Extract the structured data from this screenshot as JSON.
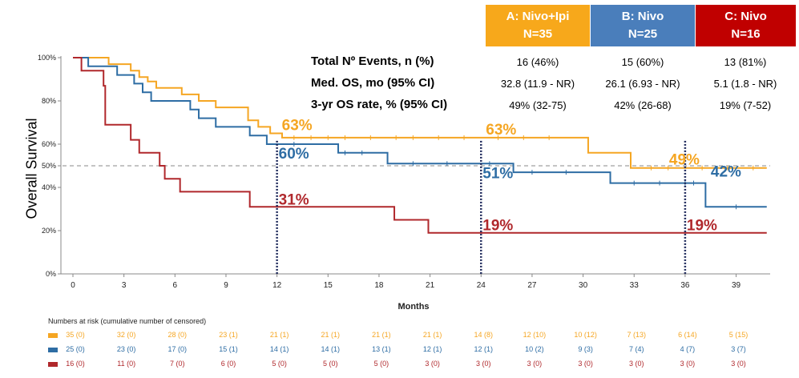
{
  "colors": {
    "A": "#F5A623",
    "B": "#2E6DA4",
    "C": "#B0282C",
    "header_A": "#F7A81B",
    "header_B": "#4A7EBB",
    "header_C": "#C00000",
    "ref": "#1F2A5C"
  },
  "arms": [
    {
      "key": "A",
      "name": "A: Nivo+Ipi",
      "n": "N=35"
    },
    {
      "key": "B",
      "name": "B: Nivo",
      "n": "N=25"
    },
    {
      "key": "C",
      "name": "C: Nivo",
      "n": "N=16"
    }
  ],
  "stats": [
    {
      "label": "Total Nº Events, n (%)",
      "values": [
        "16 (46%)",
        "15 (60%)",
        "13 (81%)"
      ]
    },
    {
      "label": "Med. OS, mo (95% CI)",
      "values": [
        "32.8 (11.9 - NR)",
        "26.1 (6.93 - NR)",
        "5.1 (1.8 - NR)"
      ]
    },
    {
      "label": "3-yr OS rate, % (95% CI)",
      "values": [
        "49% (32-75)",
        "42% (26-68)",
        "19% (7-52)"
      ]
    }
  ],
  "chart_data": {
    "type": "line",
    "subtype": "kaplan-meier",
    "xlabel": "Months",
    "ylabel": "Overall Survival",
    "xlim": [
      0,
      41
    ],
    "ylim": [
      0,
      100
    ],
    "xticks": [
      0,
      3,
      6,
      9,
      12,
      15,
      18,
      21,
      24,
      27,
      30,
      33,
      36,
      39
    ],
    "yticks": [
      0,
      20,
      40,
      50,
      60,
      80,
      100
    ],
    "ytick_labels": [
      "0%",
      "20%",
      "40%",
      "50%",
      "60%",
      "80%",
      "100%"
    ],
    "reference_line_y": 50,
    "landmarks_x": [
      12,
      24,
      36
    ],
    "series": [
      {
        "key": "A",
        "steps": [
          [
            0,
            100
          ],
          [
            2.1,
            97
          ],
          [
            3.4,
            94
          ],
          [
            3.9,
            91
          ],
          [
            4.4,
            89
          ],
          [
            4.9,
            86
          ],
          [
            6.4,
            83
          ],
          [
            7.4,
            80
          ],
          [
            8.4,
            77
          ],
          [
            10.3,
            71
          ],
          [
            10.9,
            68
          ],
          [
            11.6,
            65
          ],
          [
            12.3,
            63
          ],
          [
            30.3,
            56
          ],
          [
            32.8,
            49
          ]
        ],
        "censor_x": [
          13,
          14,
          15,
          16,
          17.5,
          19,
          20,
          21.5,
          23,
          25,
          26.5,
          28,
          34,
          35,
          37,
          38.5,
          40
        ],
        "xend": 40.8
      },
      {
        "key": "B",
        "steps": [
          [
            0,
            100
          ],
          [
            0.9,
            96
          ],
          [
            2.6,
            92
          ],
          [
            3.6,
            88
          ],
          [
            4.1,
            84
          ],
          [
            4.6,
            80
          ],
          [
            6.9,
            76
          ],
          [
            7.4,
            72
          ],
          [
            8.4,
            68
          ],
          [
            10.4,
            64
          ],
          [
            11.4,
            60
          ],
          [
            15.6,
            56
          ],
          [
            18.5,
            51
          ],
          [
            25.9,
            47
          ],
          [
            31.6,
            42
          ],
          [
            37.2,
            31
          ]
        ],
        "censor_x": [
          13,
          16,
          17,
          20,
          22,
          24.5,
          27,
          29,
          33,
          34.5,
          36,
          36.5,
          39
        ],
        "xend": 40.8
      },
      {
        "key": "C",
        "steps": [
          [
            0,
            100
          ],
          [
            0.5,
            94
          ],
          [
            1.8,
            87
          ],
          [
            1.9,
            69
          ],
          [
            3.4,
            62
          ],
          [
            3.9,
            56
          ],
          [
            5.1,
            50
          ],
          [
            5.4,
            44
          ],
          [
            6.3,
            38
          ],
          [
            10.4,
            31
          ],
          [
            18.9,
            25
          ],
          [
            20.9,
            19
          ]
        ],
        "censor_x": [],
        "xend": 40.8
      }
    ],
    "annotations": [
      {
        "series": "A",
        "x": 12,
        "text": "63%"
      },
      {
        "series": "A",
        "x": 24,
        "text": "63%"
      },
      {
        "series": "A",
        "x": 36,
        "text": "49%"
      },
      {
        "series": "B",
        "x": 12,
        "text": "60%"
      },
      {
        "series": "B",
        "x": 24,
        "text": "51%"
      },
      {
        "series": "B",
        "x": 36,
        "text": "42%"
      },
      {
        "series": "C",
        "x": 12,
        "text": "31%"
      },
      {
        "series": "C",
        "x": 24,
        "text": "19%"
      },
      {
        "series": "C",
        "x": 36,
        "text": "19%"
      }
    ]
  },
  "risk_table": {
    "title": "Numbers at risk (cumulative number of censored)",
    "rows": [
      {
        "key": "A",
        "values": [
          "35 (0)",
          "32 (0)",
          "28 (0)",
          "23 (1)",
          "21 (1)",
          "21 (1)",
          "21 (1)",
          "21 (1)",
          "14 (8)",
          "12 (10)",
          "10 (12)",
          "7 (13)",
          "6 (14)",
          "5 (15)"
        ]
      },
      {
        "key": "B",
        "values": [
          "25 (0)",
          "23 (0)",
          "17 (0)",
          "15 (1)",
          "14 (1)",
          "14 (1)",
          "13 (1)",
          "12 (1)",
          "12 (1)",
          "10 (2)",
          "9 (3)",
          "7 (4)",
          "4 (7)",
          "3 (7)"
        ]
      },
      {
        "key": "C",
        "values": [
          "16 (0)",
          "11 (0)",
          "7 (0)",
          "6 (0)",
          "5 (0)",
          "5 (0)",
          "5 (0)",
          "3 (0)",
          "3 (0)",
          "3 (0)",
          "3 (0)",
          "3 (0)",
          "3 (0)",
          "3 (0)"
        ]
      }
    ]
  }
}
